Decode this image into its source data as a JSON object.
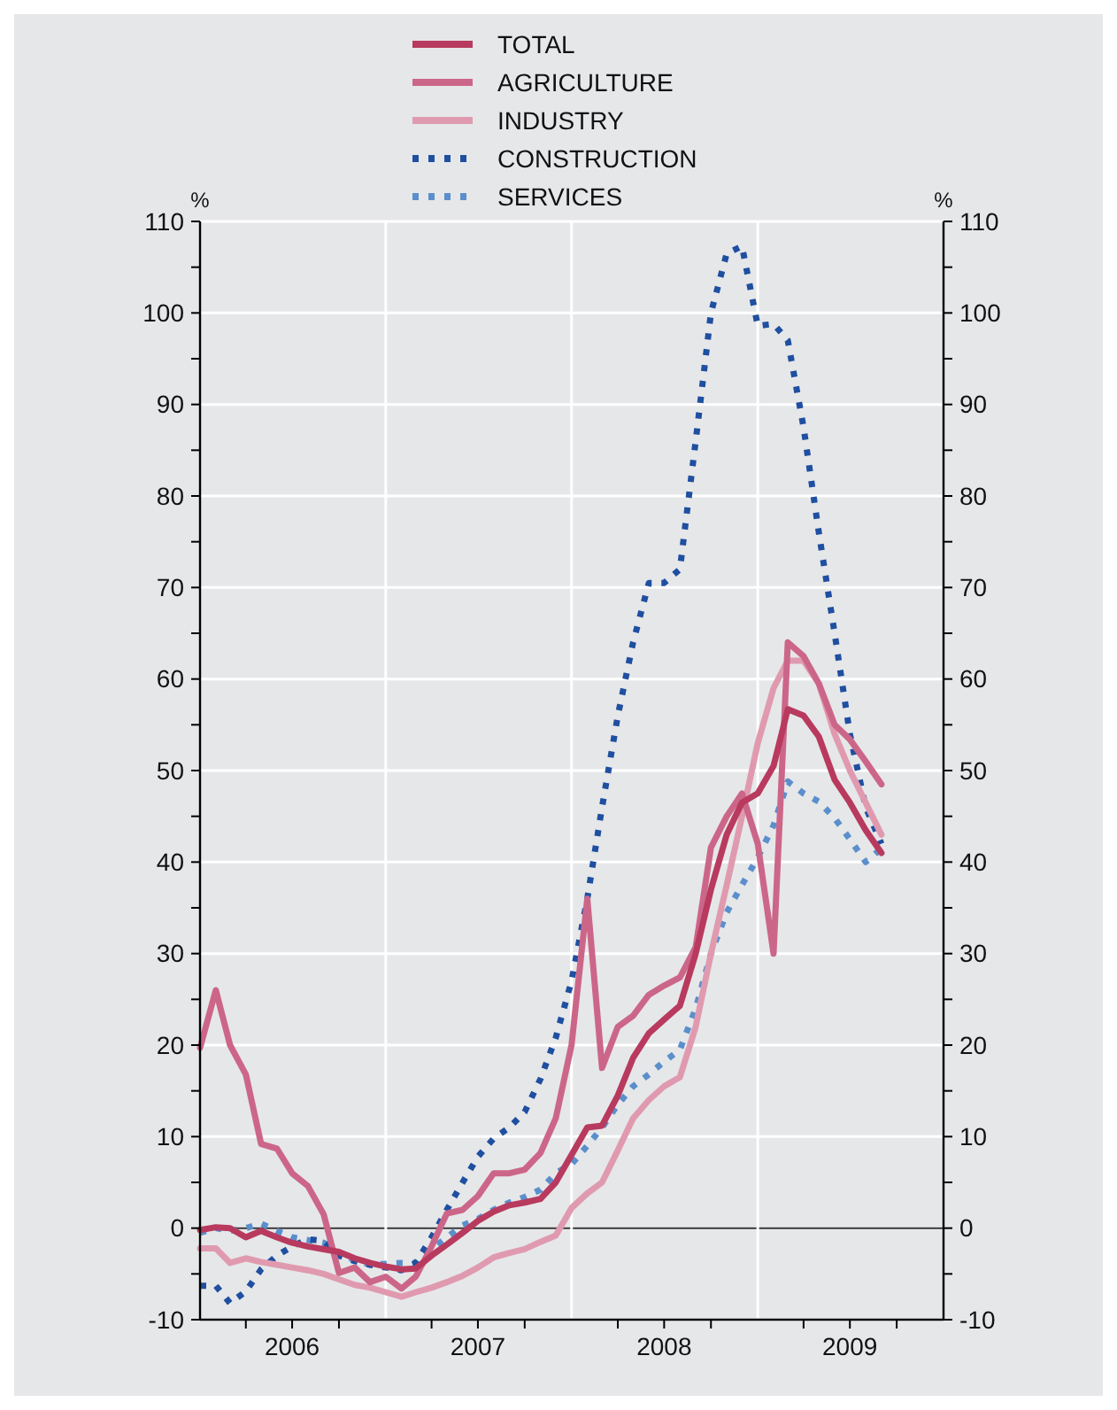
{
  "chart_data": {
    "type": "line",
    "ylabel": "%",
    "y2label": "%",
    "x": [
      "2006-01",
      "2006-02",
      "2006-03",
      "2006-04",
      "2006-05",
      "2006-06",
      "2006-07",
      "2006-08",
      "2006-09",
      "2006-10",
      "2006-11",
      "2006-12",
      "2007-01",
      "2007-02",
      "2007-03",
      "2007-04",
      "2007-05",
      "2007-06",
      "2007-07",
      "2007-08",
      "2007-09",
      "2007-10",
      "2007-11",
      "2007-12",
      "2008-01",
      "2008-02",
      "2008-03",
      "2008-04",
      "2008-05",
      "2008-06",
      "2008-07",
      "2008-08",
      "2008-09",
      "2008-10",
      "2008-11",
      "2008-12",
      "2009-01",
      "2009-02",
      "2009-03",
      "2009-04",
      "2009-05",
      "2009-06",
      "2009-07",
      "2009-08",
      "2009-09"
    ],
    "series": [
      {
        "name": "TOTAL",
        "color": "#b83a5e",
        "values": [
          -0.2,
          0.1,
          0,
          -1,
          -0.3,
          -1,
          -1.6,
          -2,
          -2.3,
          -2.6,
          -3.3,
          -3.8,
          -4.2,
          -4.5,
          -4.4,
          -3,
          -1.8,
          -0.5,
          0.8,
          1.8,
          2.5,
          2.8,
          3.2,
          5,
          8,
          11,
          11.2,
          14.5,
          18.6,
          21.3,
          22.8,
          24.3,
          30,
          37,
          43,
          46.5,
          47.5,
          50.5,
          56.7,
          56,
          53.7,
          49,
          46.5,
          43.5,
          41
        ]
      },
      {
        "name": "AGRICULTURE",
        "color": "#cc6688",
        "values": [
          19.7,
          26,
          20,
          16.8,
          9.2,
          8.7,
          6,
          4.6,
          1.5,
          -4.9,
          -4.3,
          -5.9,
          -5.3,
          -6.6,
          -5.3,
          -2,
          1.6,
          2,
          3.5,
          6,
          6,
          6.4,
          8.2,
          12,
          20,
          36,
          17.5,
          22,
          23.2,
          25.5,
          26.5,
          27.4,
          30.7,
          41.6,
          45,
          47.5,
          42,
          30,
          64,
          62.5,
          59.5,
          55,
          53.4,
          51,
          48.5
        ]
      },
      {
        "name": "INDUSTRY",
        "color": "#e09aaf",
        "values": [
          -2.2,
          -2.2,
          -3.8,
          -3.3,
          -3.7,
          -4,
          -4.3,
          -4.6,
          -5,
          -5.6,
          -6.2,
          -6.5,
          -7,
          -7.5,
          -7,
          -6.5,
          -5.9,
          -5.2,
          -4.3,
          -3.2,
          -2.7,
          -2.3,
          -1.5,
          -0.8,
          2.2,
          3.8,
          5,
          8.5,
          12,
          14,
          15.5,
          16.5,
          22,
          30,
          37.5,
          45,
          53,
          59,
          62,
          62,
          59.5,
          54,
          50,
          46.5,
          43
        ]
      },
      {
        "name": "CONSTRUCTION",
        "color": "#1f4fa0",
        "line_style": "dotted",
        "values": [
          -6.3,
          -6.3,
          -8.2,
          -6.9,
          -4.5,
          -3,
          -2,
          -1.2,
          -1.4,
          -3,
          -3.6,
          -4,
          -4.3,
          -4.6,
          -3.8,
          -1,
          2,
          5,
          7.8,
          9.8,
          11,
          12.7,
          16.3,
          20.8,
          27,
          36,
          46,
          56,
          64,
          70.5,
          70.5,
          72,
          86,
          100,
          106.5,
          107.3,
          98.6,
          98.8,
          97,
          87.5,
          76,
          65,
          54,
          46,
          42
        ]
      },
      {
        "name": "SERVICES",
        "color": "#5b8fcc",
        "line_style": "dotted",
        "values": [
          -0.5,
          0,
          -0.3,
          0,
          0.5,
          -0.3,
          -1,
          -1.3,
          -1.6,
          -2.8,
          -3.5,
          -4,
          -3.9,
          -3.8,
          -3.8,
          -2.3,
          -1,
          0.3,
          1,
          2,
          2.8,
          3.4,
          4.2,
          6,
          7,
          9,
          11,
          13.5,
          15.5,
          16.8,
          18.2,
          19.5,
          24,
          30,
          34.5,
          37.5,
          40.5,
          44,
          48.8,
          47.5,
          46.6,
          44.8,
          42.5,
          40,
          41.5
        ]
      }
    ],
    "xlim": [
      "2006-01",
      "2010-01"
    ],
    "xticks": [
      {
        "value": "2006-04",
        "label": null
      },
      {
        "value": "2006-07",
        "label": "2006"
      },
      {
        "value": "2006-10",
        "label": null
      },
      {
        "value": "2007-04",
        "label": null
      },
      {
        "value": "2007-07",
        "label": "2007"
      },
      {
        "value": "2007-10",
        "label": null
      },
      {
        "value": "2008-04",
        "label": null
      },
      {
        "value": "2008-07",
        "label": "2008"
      },
      {
        "value": "2008-10",
        "label": null
      },
      {
        "value": "2009-04",
        "label": null
      },
      {
        "value": "2009-07",
        "label": "2009"
      },
      {
        "value": "2009-10",
        "label": null
      }
    ],
    "ylim": [
      -10,
      110
    ],
    "yticks": [
      -10,
      {
        "value": -5,
        "label": null
      },
      0,
      {
        "value": 5,
        "label": null
      },
      10,
      {
        "value": 15,
        "label": null
      },
      20,
      {
        "value": 25,
        "label": null
      },
      30,
      {
        "value": 35,
        "label": null
      },
      40,
      {
        "value": 45,
        "label": null
      },
      50,
      {
        "value": 55,
        "label": null
      },
      60,
      {
        "value": 65,
        "label": null
      },
      70,
      {
        "value": 75,
        "label": null
      },
      80,
      {
        "value": 85,
        "label": null
      },
      90,
      {
        "value": 95,
        "label": null
      },
      100,
      {
        "value": 105,
        "label": null
      },
      110
    ],
    "y2lim": [
      -10,
      110
    ],
    "y2ticks": [
      -10,
      {
        "value": -5,
        "label": null
      },
      0,
      {
        "value": 5,
        "label": null
      },
      10,
      {
        "value": 15,
        "label": null
      },
      20,
      {
        "value": 25,
        "label": null
      },
      30,
      {
        "value": 35,
        "label": null
      },
      40,
      {
        "value": 45,
        "label": null
      },
      50,
      {
        "value": 55,
        "label": null
      },
      60,
      {
        "value": 65,
        "label": null
      },
      70,
      {
        "value": 75,
        "label": null
      },
      80,
      {
        "value": 85,
        "label": null
      },
      90,
      {
        "value": 95,
        "label": null
      },
      100,
      {
        "value": 105,
        "label": null
      },
      110
    ],
    "ref_lines": [
      {
        "axis": "y",
        "value": 0,
        "color": "#333333"
      },
      {
        "axis": "x",
        "value": "2007-01",
        "color": "#ffffff"
      },
      {
        "axis": "x",
        "value": "2008-01",
        "color": "#ffffff"
      },
      {
        "axis": "x",
        "value": "2009-01",
        "color": "#ffffff"
      }
    ],
    "grid": "y",
    "legend": "top",
    "marker": "none",
    "line_style": "solid"
  }
}
